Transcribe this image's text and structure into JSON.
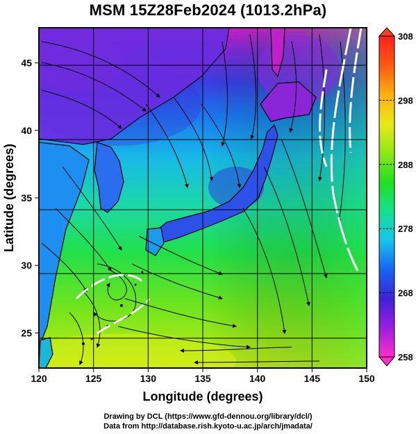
{
  "title": "MSM 15Z28Feb2024 (1013.2hPa)",
  "xlabel": "Longitude (degrees)",
  "ylabel": "Latitude  (degrees)",
  "x_ticks": [
    120,
    125,
    130,
    135,
    140,
    145,
    150
  ],
  "y_ticks": [
    25,
    30,
    35,
    40,
    45
  ],
  "xlim": [
    120,
    150
  ],
  "ylim": [
    22.4,
    47.6
  ],
  "colorbar": {
    "ticks": [
      258,
      268,
      278,
      288,
      298,
      308
    ],
    "range": [
      258,
      308
    ],
    "colors": [
      "#ff2ec8",
      "#9a1fe0",
      "#3f22d8",
      "#1666f2",
      "#19c4ec",
      "#16e08c",
      "#1fe020",
      "#8fe818",
      "#e8e818",
      "#ffb010",
      "#ff5a10",
      "#ff2020"
    ]
  },
  "credits": {
    "line1": "Drawing by DCL (https://www.gfd-dennou.org/library/dcl/)",
    "line2": "Data from http://database.rish.kyoto-u.ac.jp/arch/jmadata/"
  }
}
